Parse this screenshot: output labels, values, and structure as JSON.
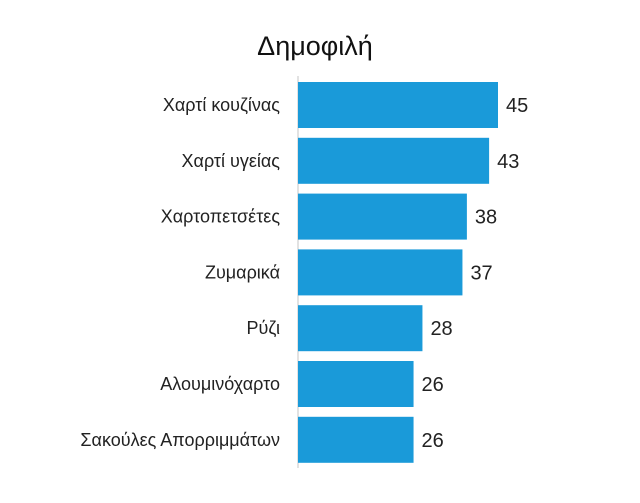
{
  "chart_data": {
    "type": "bar",
    "orientation": "horizontal",
    "title": "Δημοφιλή",
    "categories": [
      "Χαρτί κουζίνας",
      "Χαρτί υγείας",
      "Χαρτοπετσέτες",
      "Ζυμαρικά",
      "Ρύζι",
      "Αλουμινόχαρτο",
      "Σακούλες Απορριμμάτων"
    ],
    "values": [
      45,
      43,
      38,
      37,
      28,
      26,
      26
    ],
    "xlim": [
      0,
      45
    ],
    "grid": false,
    "legend": "none",
    "colors": {
      "bar": "#1a9ad9",
      "baseline": "#d9d9d9"
    }
  }
}
